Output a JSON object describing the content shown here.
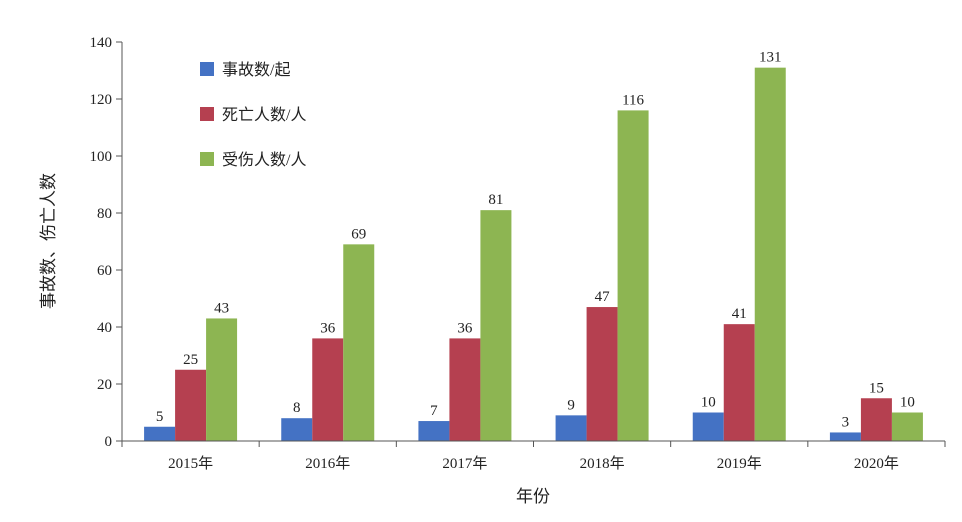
{
  "chart_data": {
    "type": "bar",
    "title": "",
    "xlabel": "年份",
    "ylabel": "事故数、伤亡人数",
    "categories": [
      "2015年",
      "2016年",
      "2017年",
      "2018年",
      "2019年",
      "2020年"
    ],
    "series": [
      {
        "name": "事故数/起",
        "color": "#4472C4",
        "values": [
          5,
          8,
          7,
          9,
          10,
          3
        ]
      },
      {
        "name": "死亡人数/人",
        "color": "#B54050",
        "values": [
          25,
          36,
          36,
          47,
          41,
          15
        ]
      },
      {
        "name": "受伤人数/人",
        "color": "#8DB552",
        "values": [
          43,
          69,
          81,
          116,
          131,
          10
        ]
      }
    ],
    "ylim": [
      0,
      140
    ],
    "yticks": [
      0,
      20,
      40,
      60,
      80,
      100,
      120,
      140
    ],
    "grid": false,
    "legend_position": "top-left"
  }
}
